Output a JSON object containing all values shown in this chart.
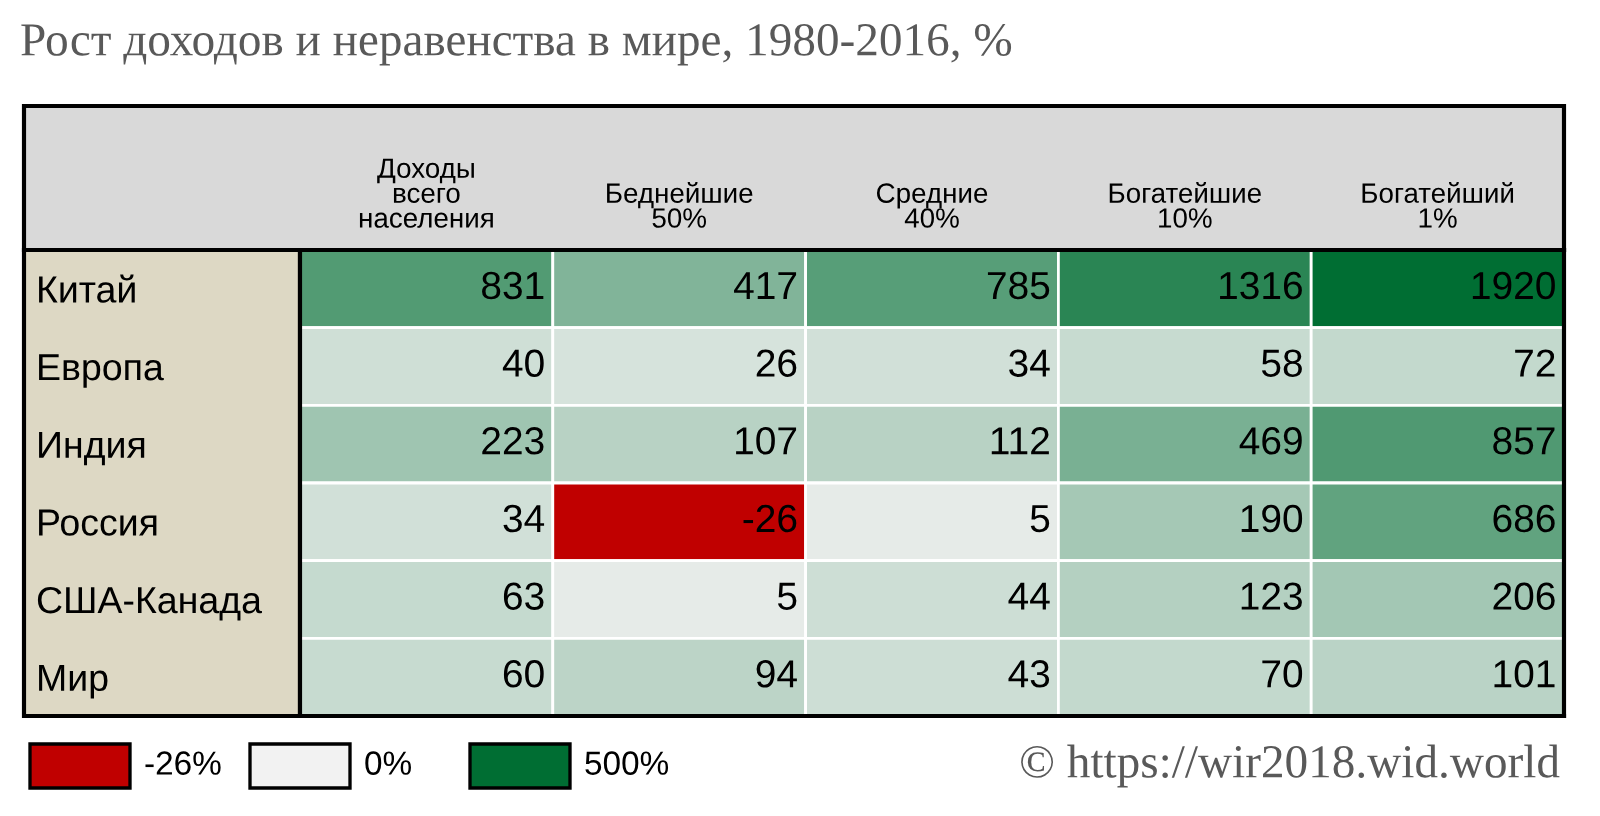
{
  "chart_data": {
    "type": "heatmap",
    "title": "Рост доходов и неравенства в мире, 1980-2016, %",
    "categories": [
      "Доходы\nвсего\nнаселения",
      "Беднейшие\n50%",
      "Средние\n40%",
      "Богатейшие\n10%",
      "Богатейший\n1%"
    ],
    "y_categories": [
      "Китай",
      "Европа",
      "Индия",
      "Россия",
      "США-Канада",
      "Мир"
    ],
    "cells": [
      [
        831,
        417,
        785,
        1316,
        1920
      ],
      [
        40,
        26,
        34,
        58,
        72
      ],
      [
        223,
        107,
        112,
        469,
        857
      ],
      [
        34,
        -26,
        5,
        190,
        686
      ],
      [
        63,
        5,
        44,
        123,
        206
      ],
      [
        60,
        94,
        43,
        70,
        101
      ]
    ],
    "colors": [
      "#c00000",
      "#f2f2f2",
      "#006e33"
    ],
    "data_labels": true,
    "annotations": [
      "-26%",
      "0%",
      "500%",
      "© https://wir2018.wid.world"
    ]
  }
}
